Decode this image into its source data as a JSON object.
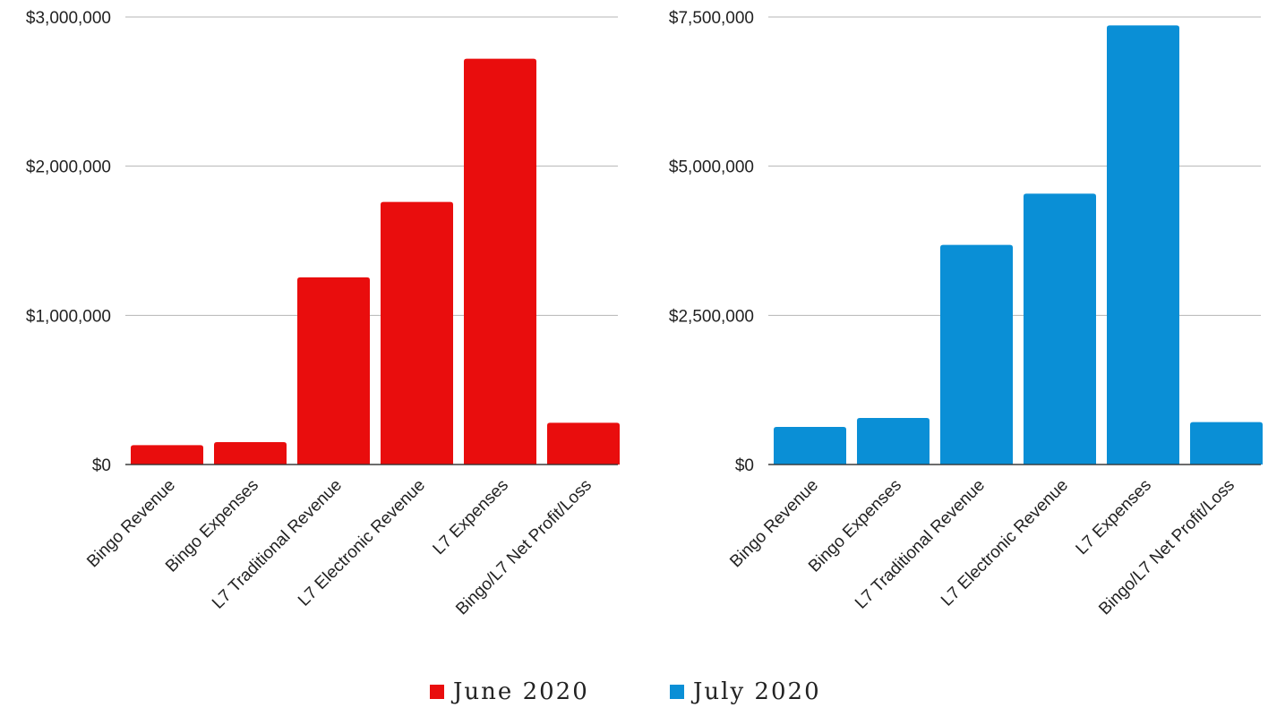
{
  "chart_data": [
    {
      "type": "bar",
      "categories": [
        "Bingo Revenue",
        "Bingo Expenses",
        "L7 Traditional Revenue",
        "L7 Electronic Revenue",
        "L7 Expenses",
        "Bingo/L7 Net Profit/Loss"
      ],
      "series": [
        {
          "name": "June 2020",
          "values": [
            130000,
            150000,
            1255000,
            1760000,
            2720000,
            280000
          ]
        }
      ],
      "color": "#e90d0d",
      "ylim": [
        0,
        3000000
      ],
      "yticks": [
        0,
        1000000,
        2000000,
        3000000
      ],
      "ytick_labels": [
        "$0",
        "$1,000,000",
        "$2,000,000",
        "$3,000,000"
      ],
      "grid": true
    },
    {
      "type": "bar",
      "categories": [
        "Bingo Revenue",
        "Bingo Expenses",
        "L7 Traditional Revenue",
        "L7 Electronic Revenue",
        "L7 Expenses",
        "Bingo/L7 Net Profit/Loss"
      ],
      "series": [
        {
          "name": "July 2020",
          "values": [
            630000,
            780000,
            3680000,
            4540000,
            7360000,
            710000
          ]
        }
      ],
      "color": "#0a8fd6",
      "ylim": [
        0,
        7500000
      ],
      "yticks": [
        0,
        2500000,
        5000000,
        7500000
      ],
      "ytick_labels": [
        "$0",
        "$2,500,000",
        "$5,000,000",
        "$7,500,000"
      ],
      "grid": true
    }
  ],
  "legend": {
    "placement": "bottom-center",
    "items": [
      {
        "label": "June 2020",
        "color": "#e90d0d"
      },
      {
        "label": "July 2020",
        "color": "#0a8fd6"
      }
    ]
  }
}
